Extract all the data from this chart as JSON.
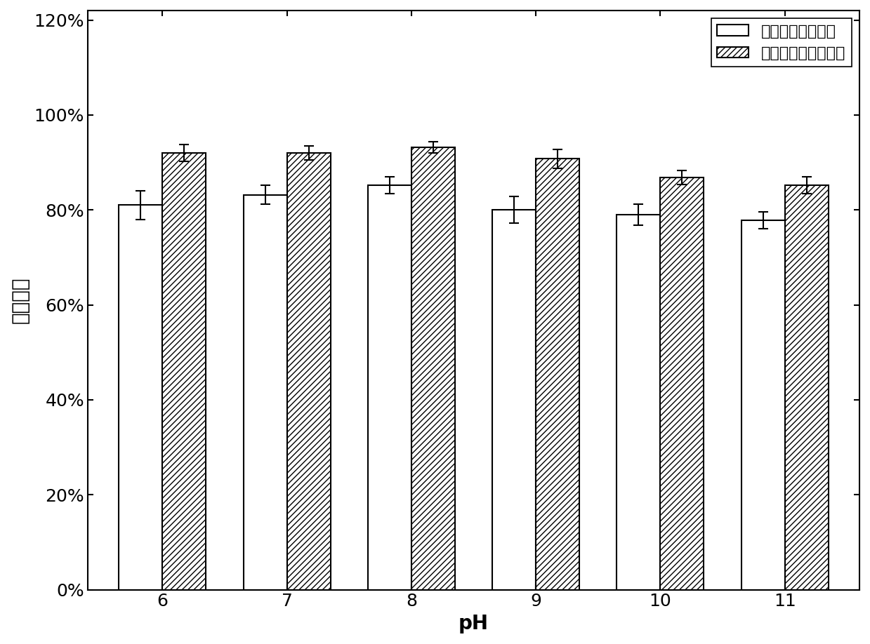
{
  "ph_values": [
    6,
    7,
    8,
    9,
    10,
    11
  ],
  "free_enzyme": [
    0.81,
    0.832,
    0.852,
    0.8,
    0.79,
    0.778
  ],
  "free_enzyme_err": [
    0.03,
    0.02,
    0.018,
    0.028,
    0.022,
    0.018
  ],
  "immob_enzyme": [
    0.92,
    0.92,
    0.932,
    0.908,
    0.868,
    0.852
  ],
  "immob_enzyme_err": [
    0.018,
    0.015,
    0.012,
    0.02,
    0.015,
    0.018
  ],
  "xlabel": "pH",
  "ylabel": "相对酶活",
  "legend_free": "游离青霉素酰化酶",
  "legend_immob": "固定化青霉素酰化酶",
  "ylim": [
    0,
    1.22
  ],
  "yticks": [
    0,
    0.2,
    0.4,
    0.6,
    0.8,
    1.0,
    1.2
  ],
  "ytick_labels": [
    "0%",
    "20%",
    "40%",
    "60%",
    "80%",
    "100%",
    "120%"
  ],
  "bar_width": 0.35,
  "background_color": "#ffffff",
  "bar_color_free": "#ffffff",
  "bar_color_immob": "#ffffff",
  "bar_edge_color": "#000000",
  "hatch_immob": "////",
  "font_size": 18,
  "label_font_size": 20,
  "tick_font_size": 18
}
